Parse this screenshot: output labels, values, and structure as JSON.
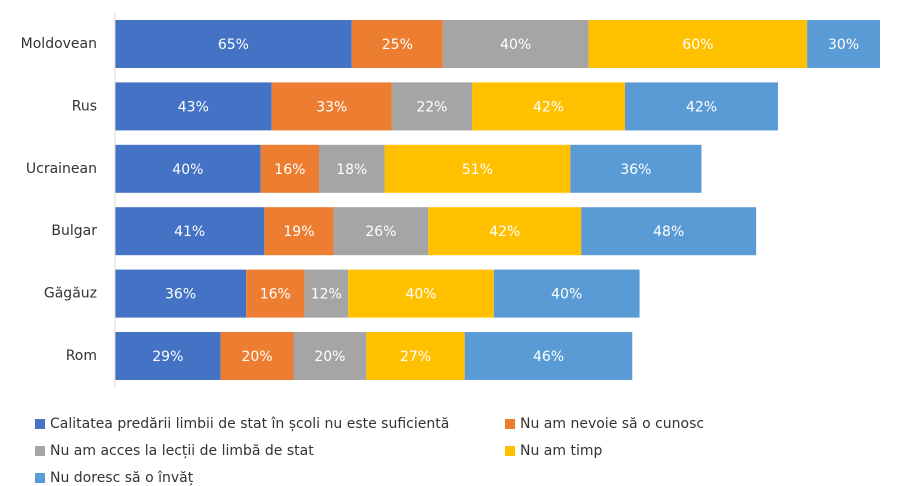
{
  "chart_data": {
    "type": "stacked-barh",
    "categories": [
      "Moldovean",
      "Rus",
      "Ucrainean",
      "Bulgar",
      "Găgăuz",
      "Rom"
    ],
    "xlim": [
      0,
      210
    ],
    "series": [
      {
        "name": "Calitatea predării limbii de stat în școli nu este suficientă",
        "color": "#4472c4",
        "values": [
          65,
          43,
          40,
          41,
          36,
          29
        ],
        "value_labels": [
          "65%",
          "43%",
          "40%",
          "41%",
          "36%",
          "29%"
        ]
      },
      {
        "name": "Nu am nevoie să o cunosc",
        "color": "#ed7d31",
        "values": [
          25,
          33,
          16,
          19,
          16,
          20
        ],
        "value_labels": [
          "25%",
          "33%",
          "16%",
          "19%",
          "16%",
          "20%"
        ]
      },
      {
        "name": "Nu am acces la lecții de limbă de stat",
        "color": "#a5a5a5",
        "values": [
          40,
          22,
          18,
          26,
          12,
          20
        ],
        "value_labels": [
          "40%",
          "22%",
          "18%",
          "26%",
          "12%",
          "20%"
        ]
      },
      {
        "name": "Nu am timp",
        "color": "#ffc000",
        "values": [
          60,
          42,
          51,
          42,
          40,
          27
        ],
        "value_labels": [
          "60%",
          "42%",
          "51%",
          "42%",
          "40%",
          "27%"
        ]
      },
      {
        "name": "Nu doresc să o învăț",
        "color": "#5b9bd5",
        "values": [
          30,
          42,
          36,
          48,
          40,
          46
        ],
        "value_labels": [
          "30%",
          "42%",
          "36%",
          "48%",
          "40%",
          "46%"
        ]
      }
    ]
  }
}
